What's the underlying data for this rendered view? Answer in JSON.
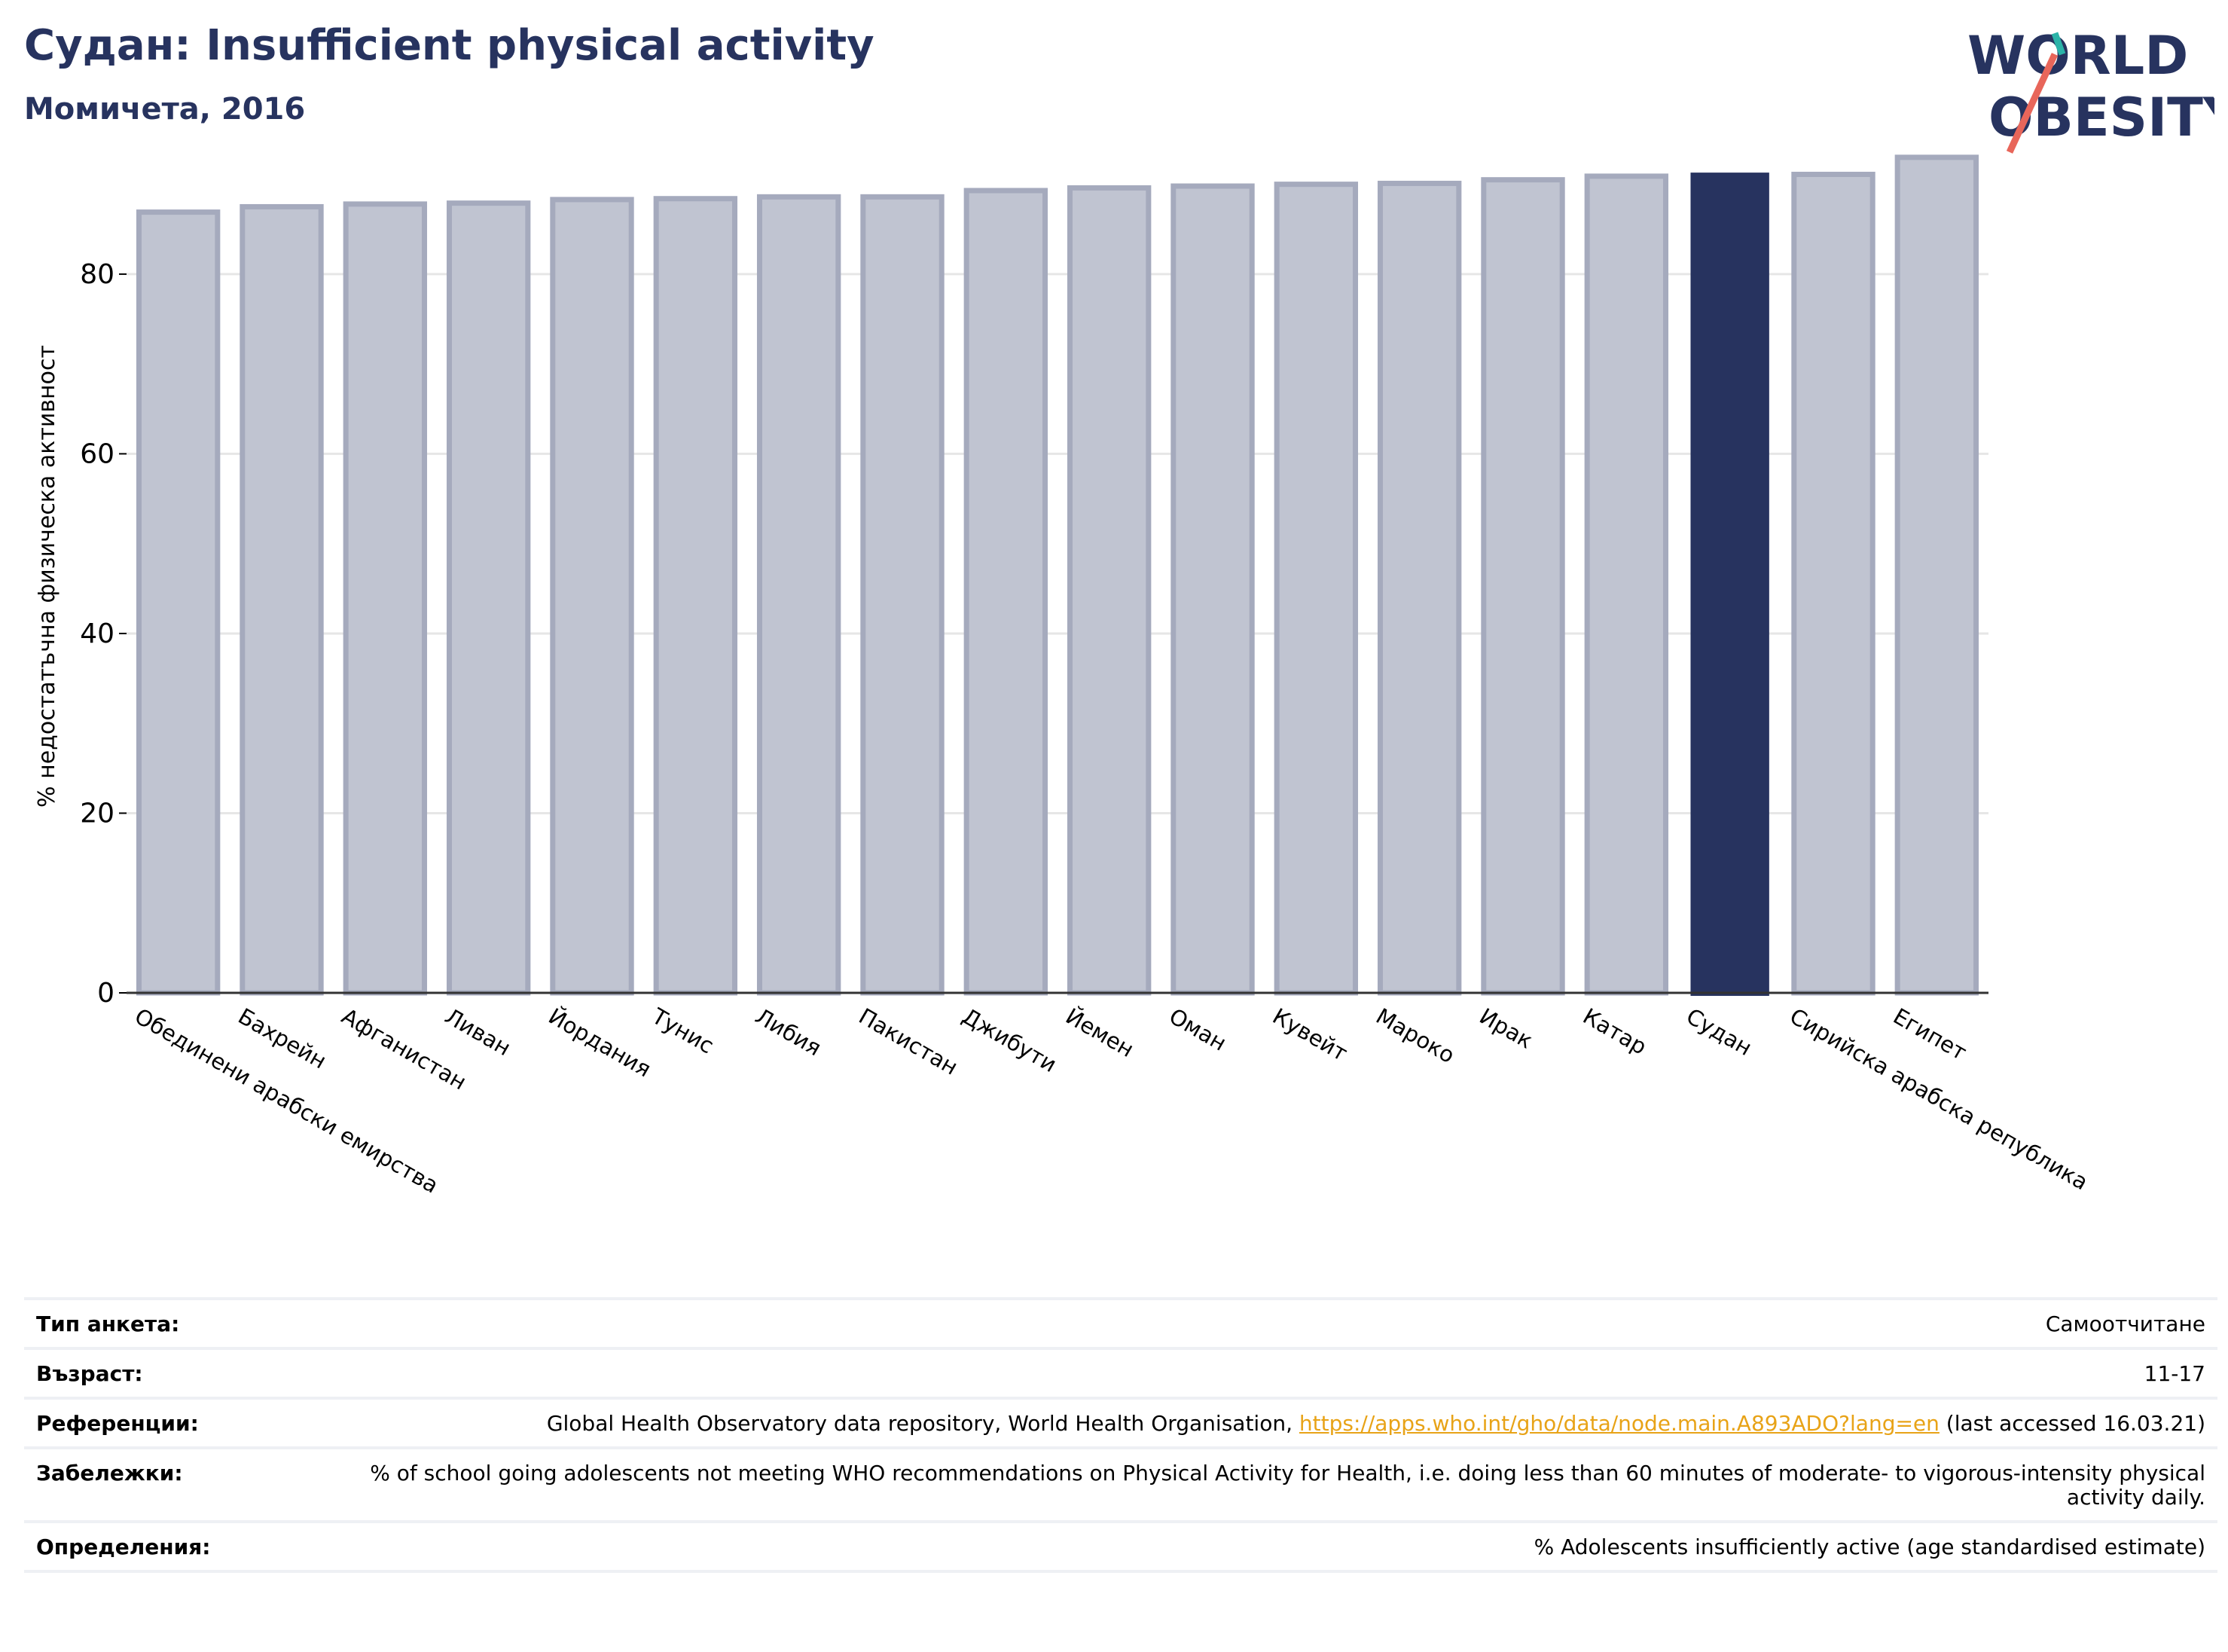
{
  "header": {
    "title": "Судан: Insufficient physical activity",
    "subtitle": "Момичета, 2016"
  },
  "logo": {
    "line1": "WORLD",
    "line2": "OBESITY",
    "colors": {
      "navy": "#27335f",
      "teal": "#2bb3a8",
      "coral": "#e8665a"
    }
  },
  "colors": {
    "bar": "#c0c4d1",
    "bar_stroke": "#a5aabd",
    "highlight": "#27335f",
    "grid": "#e6e6e6",
    "link": "#e8a317"
  },
  "chart_data": {
    "type": "bar",
    "title": "",
    "xlabel": "",
    "ylabel": "% недостатъчна физическа активност",
    "ylim": [
      0,
      95
    ],
    "yticks": [
      0,
      20,
      40,
      60,
      80
    ],
    "grid": true,
    "highlight_category": "Судан",
    "categories": [
      "Обединени арабски емирства",
      "Бахрейн",
      "Афганистан",
      "Ливан",
      "Йордания",
      "Тунис",
      "Либия",
      "Пакистан",
      "Джибути",
      "Йемен",
      "Оман",
      "Кувейт",
      "Мароко",
      "Ирак",
      "Катар",
      "Судан",
      "Сирийска арабска република",
      "Египет"
    ],
    "values": [
      86.9,
      87.5,
      87.8,
      87.9,
      88.3,
      88.4,
      88.6,
      88.6,
      89.3,
      89.6,
      89.8,
      90.0,
      90.1,
      90.5,
      90.9,
      91.3,
      91.1,
      93.0
    ]
  },
  "info_table": [
    {
      "label": "Тип анкета:",
      "value": "Самоотчитане"
    },
    {
      "label": "Възраст:",
      "value": "11-17"
    },
    {
      "label": "Референции:",
      "value_before": "Global Health Observatory data repository, World Health Organisation, ",
      "link": "https://apps.who.int/gho/data/node.main.A893ADO?lang=en",
      "value_after": " (last accessed 16.03.21)"
    },
    {
      "label": "Забележки:",
      "value": "% of school going adolescents not meeting WHO recommendations on Physical Activity for Health, i.e. doing less than 60 minutes of moderate- to vigorous-intensity physical activity daily."
    },
    {
      "label": "Определения:",
      "value": "% Adolescents insufficiently active (age standardised estimate)"
    }
  ]
}
